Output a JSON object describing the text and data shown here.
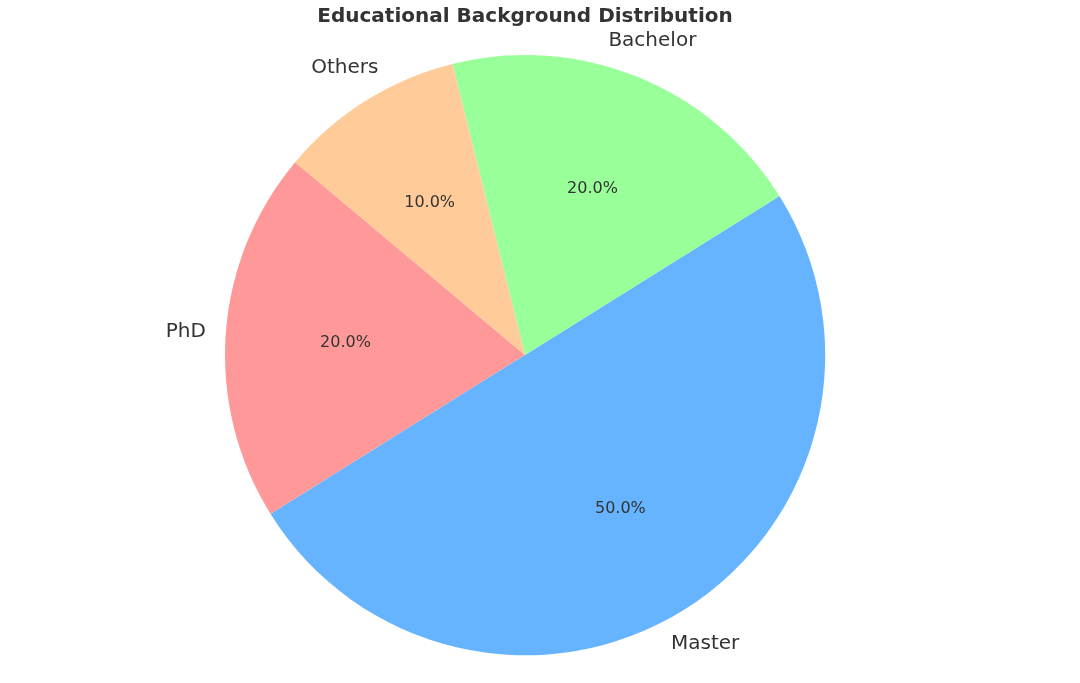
{
  "chart_data": {
    "type": "pie",
    "title": "Educational Background Distribution",
    "categories": [
      "PhD",
      "Master",
      "Bachelor",
      "Others"
    ],
    "values": [
      20,
      50,
      20,
      10
    ],
    "colors": [
      "#ff9999",
      "#66b3ff",
      "#99ff99",
      "#ffcc99"
    ],
    "value_labels": [
      "20.0%",
      "50.0%",
      "20.0%",
      "10.0%"
    ],
    "legend": false
  }
}
